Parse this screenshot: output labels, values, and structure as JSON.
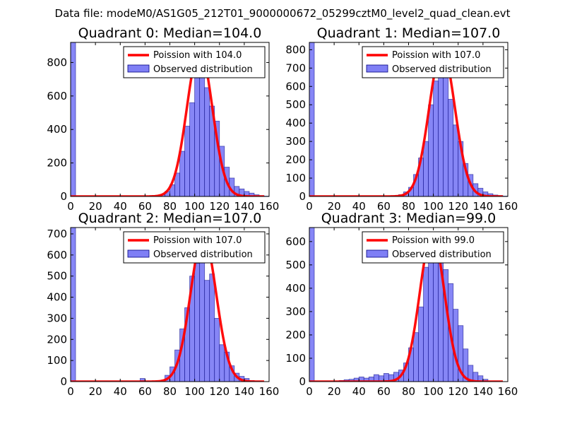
{
  "suptitle": "Data file: modeM0/AS1G05_212T01_9000000672_05299cztM0_level2_quad_clean.evt",
  "colors": {
    "curve": "#ff0000",
    "bar_fill": "#7f7ff5",
    "bar_edge": "#00007f"
  },
  "chart_data": [
    {
      "type": "bar",
      "title": "Quadrant 0: Median=104.0",
      "median": 104.0,
      "legend": [
        "Poission with 104.0",
        "Observed distribution"
      ],
      "legend_loc": "upper right",
      "xlim": [
        0,
        160
      ],
      "ylim": [
        0,
        920
      ],
      "xticks": [
        0,
        20,
        40,
        60,
        80,
        100,
        120,
        140,
        160
      ],
      "yticks": [
        0,
        200,
        400,
        600,
        800
      ],
      "x": [
        0,
        64,
        68,
        72,
        76,
        80,
        84,
        88,
        92,
        96,
        100,
        104,
        108,
        112,
        116,
        120,
        124,
        128,
        132,
        136,
        140,
        144,
        148,
        152,
        156
      ],
      "values": [
        920,
        3,
        5,
        10,
        30,
        70,
        140,
        270,
        420,
        560,
        710,
        870,
        650,
        540,
        450,
        300,
        175,
        110,
        60,
        45,
        30,
        20,
        10,
        5,
        2
      ],
      "curve_scale": 880
    },
    {
      "type": "bar",
      "title": "Quadrant 1: Median=107.0",
      "median": 107.0,
      "legend": [
        "Poission with 107.0",
        "Observed distribution"
      ],
      "legend_loc": "upper right",
      "xlim": [
        0,
        160
      ],
      "ylim": [
        0,
        840
      ],
      "xticks": [
        0,
        20,
        40,
        60,
        80,
        100,
        120,
        140,
        160
      ],
      "yticks": [
        0,
        100,
        200,
        300,
        400,
        500,
        600,
        700,
        800
      ],
      "x": [
        0,
        64,
        68,
        72,
        76,
        80,
        84,
        88,
        92,
        96,
        100,
        104,
        108,
        112,
        116,
        120,
        124,
        128,
        132,
        136,
        140,
        144,
        148,
        152,
        156
      ],
      "values": [
        840,
        3,
        5,
        10,
        25,
        50,
        120,
        210,
        300,
        500,
        630,
        740,
        660,
        530,
        390,
        300,
        180,
        120,
        70,
        45,
        25,
        15,
        8,
        5,
        2
      ],
      "curve_scale": 800
    },
    {
      "type": "bar",
      "title": "Quadrant 2: Median=107.0",
      "median": 107.0,
      "legend": [
        "Poission with 107.0",
        "Observed distribution"
      ],
      "legend_loc": "upper right",
      "xlim": [
        0,
        160
      ],
      "ylim": [
        0,
        730
      ],
      "xticks": [
        0,
        20,
        40,
        60,
        80,
        100,
        120,
        140,
        160
      ],
      "yticks": [
        0,
        100,
        200,
        300,
        400,
        500,
        600,
        700
      ],
      "x": [
        0,
        56,
        76,
        80,
        84,
        88,
        92,
        96,
        100,
        104,
        108,
        112,
        116,
        120,
        124,
        128,
        132,
        136,
        140,
        144
      ],
      "values": [
        730,
        15,
        30,
        70,
        150,
        250,
        350,
        500,
        560,
        690,
        480,
        510,
        300,
        175,
        140,
        75,
        40,
        25,
        15,
        5
      ],
      "curve_scale": 690
    },
    {
      "type": "bar",
      "title": "Quadrant 3: Median=99.0",
      "median": 99.0,
      "legend": [
        "Poission with 99.0",
        "Observed distribution"
      ],
      "legend_loc": "upper right",
      "xlim": [
        0,
        160
      ],
      "ylim": [
        0,
        660
      ],
      "xticks": [
        0,
        20,
        40,
        60,
        80,
        100,
        120,
        140,
        160
      ],
      "yticks": [
        0,
        100,
        200,
        300,
        400,
        500,
        600
      ],
      "x": [
        0,
        24,
        28,
        32,
        36,
        40,
        44,
        48,
        52,
        56,
        60,
        64,
        68,
        72,
        76,
        80,
        84,
        88,
        92,
        96,
        100,
        104,
        108,
        112,
        116,
        120,
        124,
        128,
        132,
        136,
        140
      ],
      "values": [
        660,
        5,
        8,
        10,
        15,
        20,
        15,
        20,
        30,
        25,
        35,
        30,
        40,
        50,
        80,
        145,
        210,
        320,
        490,
        540,
        620,
        580,
        480,
        420,
        310,
        240,
        140,
        70,
        40,
        25,
        10
      ],
      "curve_scale": 630
    }
  ]
}
